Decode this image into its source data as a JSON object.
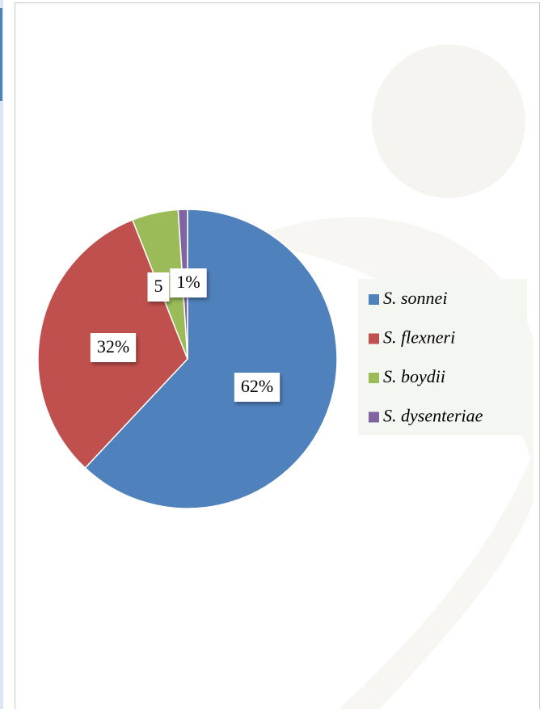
{
  "chart_data": {
    "type": "pie",
    "categories": [
      "S. sonnei",
      "S. flexneri",
      "S. boydii",
      "S. dysenteriae"
    ],
    "values": [
      62,
      32,
      5,
      1
    ],
    "value_labels": [
      "62%",
      "32%",
      "5",
      "1%"
    ],
    "colors": [
      "#4f81bd",
      "#c0504d",
      "#9bbb59",
      "#8064a2"
    ],
    "legend": "right"
  }
}
